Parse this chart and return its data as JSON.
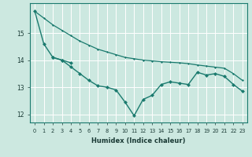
{
  "xlabel": "Humidex (Indice chaleur)",
  "bg_color": "#cce8e0",
  "grid_color": "#ffffff",
  "line_color": "#1a7a6e",
  "yticks": [
    12,
    13,
    14,
    15
  ],
  "ylim": [
    11.7,
    16.1
  ],
  "xlim": [
    -0.5,
    23.5
  ],
  "line_upper_x": [
    0,
    1,
    2,
    3,
    4,
    5,
    6,
    7,
    8,
    9,
    10,
    11,
    12,
    13,
    14,
    15,
    16,
    17,
    18,
    19,
    20,
    21,
    22,
    23
  ],
  "line_upper_y": [
    15.8,
    15.55,
    15.3,
    15.1,
    14.9,
    14.7,
    14.55,
    14.4,
    14.3,
    14.2,
    14.1,
    14.05,
    14.0,
    13.97,
    13.94,
    13.92,
    13.9,
    13.87,
    13.82,
    13.78,
    13.74,
    13.7,
    13.5,
    13.25
  ],
  "line_steep_x": [
    0,
    1,
    2,
    3,
    4
  ],
  "line_steep_y": [
    15.8,
    14.6,
    14.1,
    14.0,
    13.9
  ],
  "line_lower_x": [
    2,
    3,
    4,
    5,
    6,
    7,
    8,
    9,
    10,
    11,
    12,
    13,
    14,
    15,
    16,
    17,
    18,
    19,
    20,
    21,
    22,
    23
  ],
  "line_lower_y": [
    14.1,
    14.0,
    13.75,
    13.5,
    13.25,
    13.05,
    13.0,
    12.9,
    12.45,
    11.95,
    12.55,
    12.7,
    13.1,
    13.2,
    13.15,
    13.1,
    13.55,
    13.45,
    13.5,
    13.4,
    13.1,
    12.85
  ]
}
